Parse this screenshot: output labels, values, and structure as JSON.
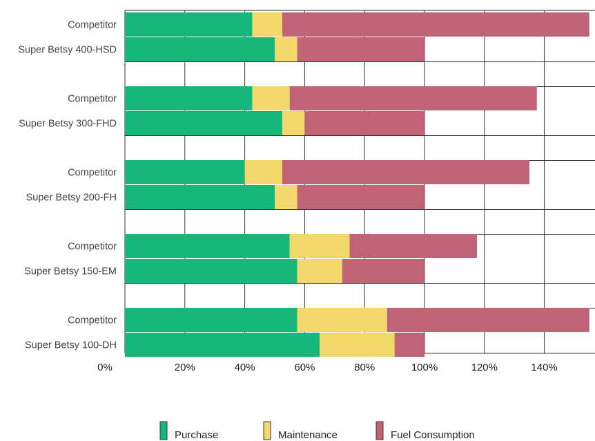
{
  "chart_data": {
    "type": "bar",
    "orientation": "horizontal",
    "stacked": true,
    "categories": [
      "Competitor",
      "Super Betsy 400-HSD",
      "Competitor",
      "Super Betsy 300-FHD",
      "Competitor",
      "Super Betsy 200-FH",
      "Competitor",
      "Super Betsy 150-EM",
      "Competitor",
      "Super Betsy 100-DH"
    ],
    "groups": [
      2,
      2,
      2,
      2,
      2
    ],
    "series": [
      {
        "name": "Purchase",
        "color": "#17b67a",
        "values": [
          42.5,
          50,
          42.5,
          52.5,
          40,
          50,
          55,
          57.5,
          57.5,
          65
        ]
      },
      {
        "name": "Maintenance",
        "color": "#f3d96b",
        "values": [
          10,
          7.5,
          12.5,
          7.5,
          12.5,
          7.5,
          20,
          15,
          30,
          25
        ]
      },
      {
        "name": "Fuel Consumption",
        "color": "#c16377",
        "values": [
          102.5,
          42.5,
          82.5,
          40,
          82.5,
          42.5,
          42.5,
          27.5,
          67.5,
          10
        ]
      }
    ],
    "x_ticks": [
      "0%",
      "20%",
      "40%",
      "60%",
      "80%",
      "100%",
      "120%",
      "140%"
    ],
    "xlim": [
      0,
      157
    ],
    "grid": "vertical",
    "legend_position": "bottom-center"
  }
}
